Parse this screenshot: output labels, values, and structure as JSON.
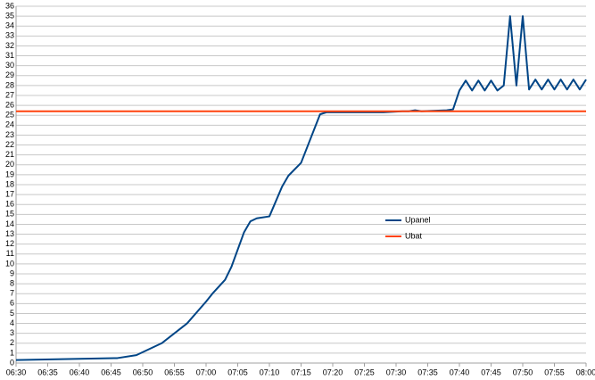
{
  "chart_data": {
    "type": "line",
    "xlim": [
      "06:30",
      "08:00"
    ],
    "xticks": [
      "06:30",
      "06:35",
      "06:40",
      "06:45",
      "06:50",
      "06:55",
      "07:00",
      "07:05",
      "07:10",
      "07:15",
      "07:20",
      "07:25",
      "07:30",
      "07:35",
      "07:40",
      "07:45",
      "07:50",
      "07:55",
      "08:00"
    ],
    "ylim": [
      0,
      36
    ],
    "yticks": [
      0,
      1,
      2,
      3,
      4,
      5,
      6,
      7,
      8,
      9,
      10,
      11,
      12,
      13,
      14,
      15,
      16,
      17,
      18,
      19,
      20,
      21,
      22,
      23,
      24,
      25,
      26,
      27,
      28,
      29,
      30,
      31,
      32,
      33,
      34,
      35,
      36
    ],
    "grid": true,
    "series": [
      {
        "name": "Upanel",
        "color": "#004586",
        "x": [
          "06:30",
          "06:46",
          "06:49",
          "06:53",
          "06:57",
          "07:00",
          "07:01",
          "07:03",
          "07:04",
          "07:06",
          "07:07",
          "07:08",
          "07:10",
          "07:12",
          "07:13",
          "07:15",
          "07:18",
          "07:19",
          "07:28",
          "07:31",
          "07:32",
          "07:33",
          "07:34",
          "07:38",
          "07:39",
          "07:40",
          "07:41",
          "07:42",
          "07:43",
          "07:44",
          "07:45",
          "07:46",
          "07:47",
          "07:48",
          "07:49",
          "07:50",
          "07:51",
          "07:52",
          "07:53",
          "07:54",
          "07:55",
          "07:56",
          "07:57",
          "07:58",
          "07:59",
          "08:00"
        ],
        "values": [
          0.3,
          0.5,
          0.8,
          2.0,
          4.0,
          6.2,
          7.0,
          8.4,
          9.7,
          13.2,
          14.3,
          14.6,
          14.8,
          17.8,
          18.9,
          20.2,
          25.1,
          25.3,
          25.3,
          25.4,
          25.4,
          25.5,
          25.4,
          25.5,
          25.6,
          27.5,
          28.5,
          27.5,
          28.5,
          27.5,
          28.5,
          27.5,
          28.0,
          35,
          28,
          35,
          27.6,
          28.6,
          27.6,
          28.6,
          27.6,
          28.6,
          27.6,
          28.6,
          27.6,
          28.6
        ]
      },
      {
        "name": "Ubat",
        "color": "#ff420e",
        "x": [
          "06:30",
          "08:00"
        ],
        "values": [
          25.4,
          25.4
        ]
      }
    ]
  }
}
